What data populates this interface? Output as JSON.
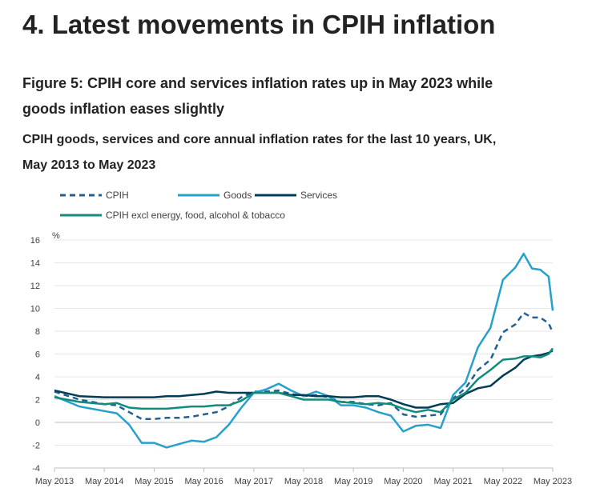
{
  "page": {
    "section_title": "4.  Latest movements in CPIH inflation",
    "figure_title": "Figure 5: CPIH core and services inflation rates up in May 2023 while goods inflation eases slightly",
    "figure_subtitle": "CPIH goods, services and core annual inflation rates for the last 10 years, UK, May 2013 to May 2023"
  },
  "chart_data": {
    "type": "line",
    "ylabel": "%",
    "xlabel": "",
    "ylim": [
      -4,
      16
    ],
    "yticks": [
      -4,
      -2,
      0,
      2,
      4,
      6,
      8,
      10,
      12,
      14,
      16
    ],
    "xlim": [
      "2013-05",
      "2023-05"
    ],
    "xticks": [
      "May 2013",
      "May 2014",
      "May 2015",
      "May 2016",
      "May 2017",
      "May 2018",
      "May 2019",
      "May 2020",
      "May 2021",
      "May 2022",
      "May 2023"
    ],
    "grid": "horizontal",
    "legend_placement": "top-left",
    "series": [
      {
        "name": "CPIH",
        "color": "#206095",
        "style": "dashed",
        "points": [
          [
            "2013-05",
            2.7
          ],
          [
            "2013-11",
            2.0
          ],
          [
            "2014-05",
            1.6
          ],
          [
            "2014-08",
            1.5
          ],
          [
            "2014-11",
            0.9
          ],
          [
            "2015-02",
            0.3
          ],
          [
            "2015-05",
            0.3
          ],
          [
            "2015-08",
            0.4
          ],
          [
            "2015-11",
            0.4
          ],
          [
            "2016-02",
            0.5
          ],
          [
            "2016-05",
            0.7
          ],
          [
            "2016-08",
            0.9
          ],
          [
            "2016-11",
            1.4
          ],
          [
            "2017-02",
            2.2
          ],
          [
            "2017-05",
            2.7
          ],
          [
            "2017-08",
            2.7
          ],
          [
            "2017-11",
            2.8
          ],
          [
            "2018-02",
            2.5
          ],
          [
            "2018-05",
            2.3
          ],
          [
            "2018-08",
            2.4
          ],
          [
            "2018-11",
            2.2
          ],
          [
            "2019-02",
            1.8
          ],
          [
            "2019-05",
            1.8
          ],
          [
            "2019-08",
            1.6
          ],
          [
            "2019-11",
            1.5
          ],
          [
            "2020-02",
            1.7
          ],
          [
            "2020-05",
            0.7
          ],
          [
            "2020-08",
            0.5
          ],
          [
            "2020-11",
            0.6
          ],
          [
            "2021-02",
            0.7
          ],
          [
            "2021-05",
            2.1
          ],
          [
            "2021-08",
            3.0
          ],
          [
            "2021-11",
            4.6
          ],
          [
            "2022-02",
            5.5
          ],
          [
            "2022-05",
            7.9
          ],
          [
            "2022-08",
            8.6
          ],
          [
            "2022-10",
            9.6
          ],
          [
            "2022-12",
            9.2
          ],
          [
            "2023-02",
            9.2
          ],
          [
            "2023-04",
            8.7
          ],
          [
            "2023-05",
            7.9
          ]
        ]
      },
      {
        "name": "Goods",
        "color": "#27a0cc",
        "style": "solid",
        "points": [
          [
            "2013-05",
            2.3
          ],
          [
            "2013-11",
            1.4
          ],
          [
            "2014-05",
            1.0
          ],
          [
            "2014-08",
            0.8
          ],
          [
            "2014-11",
            -0.2
          ],
          [
            "2015-02",
            -1.8
          ],
          [
            "2015-05",
            -1.8
          ],
          [
            "2015-08",
            -2.2
          ],
          [
            "2015-11",
            -1.9
          ],
          [
            "2016-02",
            -1.6
          ],
          [
            "2016-05",
            -1.7
          ],
          [
            "2016-08",
            -1.3
          ],
          [
            "2016-11",
            -0.2
          ],
          [
            "2017-02",
            1.3
          ],
          [
            "2017-05",
            2.6
          ],
          [
            "2017-08",
            2.9
          ],
          [
            "2017-11",
            3.4
          ],
          [
            "2018-02",
            2.8
          ],
          [
            "2018-05",
            2.3
          ],
          [
            "2018-08",
            2.7
          ],
          [
            "2018-11",
            2.3
          ],
          [
            "2019-02",
            1.5
          ],
          [
            "2019-05",
            1.5
          ],
          [
            "2019-08",
            1.3
          ],
          [
            "2019-11",
            0.9
          ],
          [
            "2020-02",
            0.6
          ],
          [
            "2020-05",
            -0.8
          ],
          [
            "2020-08",
            -0.3
          ],
          [
            "2020-11",
            -0.2
          ],
          [
            "2021-02",
            -0.5
          ],
          [
            "2021-05",
            2.4
          ],
          [
            "2021-08",
            3.5
          ],
          [
            "2021-11",
            6.6
          ],
          [
            "2022-02",
            8.3
          ],
          [
            "2022-05",
            12.5
          ],
          [
            "2022-08",
            13.6
          ],
          [
            "2022-10",
            14.8
          ],
          [
            "2022-12",
            13.5
          ],
          [
            "2023-02",
            13.4
          ],
          [
            "2023-04",
            12.8
          ],
          [
            "2023-05",
            9.8
          ]
        ]
      },
      {
        "name": "Services",
        "color": "#003c57",
        "style": "solid",
        "points": [
          [
            "2013-05",
            2.8
          ],
          [
            "2013-11",
            2.3
          ],
          [
            "2014-05",
            2.2
          ],
          [
            "2014-08",
            2.2
          ],
          [
            "2014-11",
            2.2
          ],
          [
            "2015-02",
            2.2
          ],
          [
            "2015-05",
            2.2
          ],
          [
            "2015-08",
            2.3
          ],
          [
            "2015-11",
            2.3
          ],
          [
            "2016-02",
            2.4
          ],
          [
            "2016-05",
            2.5
          ],
          [
            "2016-08",
            2.7
          ],
          [
            "2016-11",
            2.6
          ],
          [
            "2017-02",
            2.6
          ],
          [
            "2017-05",
            2.6
          ],
          [
            "2017-08",
            2.6
          ],
          [
            "2017-11",
            2.6
          ],
          [
            "2018-02",
            2.4
          ],
          [
            "2018-05",
            2.4
          ],
          [
            "2018-08",
            2.3
          ],
          [
            "2018-11",
            2.3
          ],
          [
            "2019-02",
            2.2
          ],
          [
            "2019-05",
            2.2
          ],
          [
            "2019-08",
            2.3
          ],
          [
            "2019-11",
            2.3
          ],
          [
            "2020-02",
            2.0
          ],
          [
            "2020-05",
            1.6
          ],
          [
            "2020-08",
            1.3
          ],
          [
            "2020-11",
            1.3
          ],
          [
            "2021-02",
            1.6
          ],
          [
            "2021-05",
            1.7
          ],
          [
            "2021-08",
            2.5
          ],
          [
            "2021-11",
            3.0
          ],
          [
            "2022-02",
            3.2
          ],
          [
            "2022-05",
            4.1
          ],
          [
            "2022-08",
            4.8
          ],
          [
            "2022-10",
            5.5
          ],
          [
            "2022-12",
            5.8
          ],
          [
            "2023-02",
            5.9
          ],
          [
            "2023-04",
            6.1
          ],
          [
            "2023-05",
            6.3
          ]
        ]
      },
      {
        "name": "CPIH excl energy, food, alcohol & tobacco",
        "color": "#118c7b",
        "style": "solid",
        "points": [
          [
            "2013-05",
            2.2
          ],
          [
            "2013-11",
            1.8
          ],
          [
            "2014-05",
            1.6
          ],
          [
            "2014-08",
            1.7
          ],
          [
            "2014-11",
            1.3
          ],
          [
            "2015-02",
            1.2
          ],
          [
            "2015-05",
            1.2
          ],
          [
            "2015-08",
            1.2
          ],
          [
            "2015-11",
            1.3
          ],
          [
            "2016-02",
            1.4
          ],
          [
            "2016-05",
            1.4
          ],
          [
            "2016-08",
            1.5
          ],
          [
            "2016-11",
            1.5
          ],
          [
            "2017-02",
            1.9
          ],
          [
            "2017-05",
            2.6
          ],
          [
            "2017-08",
            2.6
          ],
          [
            "2017-11",
            2.6
          ],
          [
            "2018-02",
            2.3
          ],
          [
            "2018-05",
            2.0
          ],
          [
            "2018-08",
            2.0
          ],
          [
            "2018-11",
            2.0
          ],
          [
            "2019-02",
            1.8
          ],
          [
            "2019-05",
            1.7
          ],
          [
            "2019-08",
            1.6
          ],
          [
            "2019-11",
            1.7
          ],
          [
            "2020-02",
            1.6
          ],
          [
            "2020-05",
            1.2
          ],
          [
            "2020-08",
            0.9
          ],
          [
            "2020-11",
            1.1
          ],
          [
            "2021-02",
            0.9
          ],
          [
            "2021-05",
            2.0
          ],
          [
            "2021-08",
            2.6
          ],
          [
            "2021-11",
            3.8
          ],
          [
            "2022-02",
            4.6
          ],
          [
            "2022-05",
            5.5
          ],
          [
            "2022-08",
            5.6
          ],
          [
            "2022-10",
            5.8
          ],
          [
            "2022-12",
            5.8
          ],
          [
            "2023-02",
            5.7
          ],
          [
            "2023-04",
            6.0
          ],
          [
            "2023-05",
            6.5
          ]
        ]
      }
    ]
  }
}
